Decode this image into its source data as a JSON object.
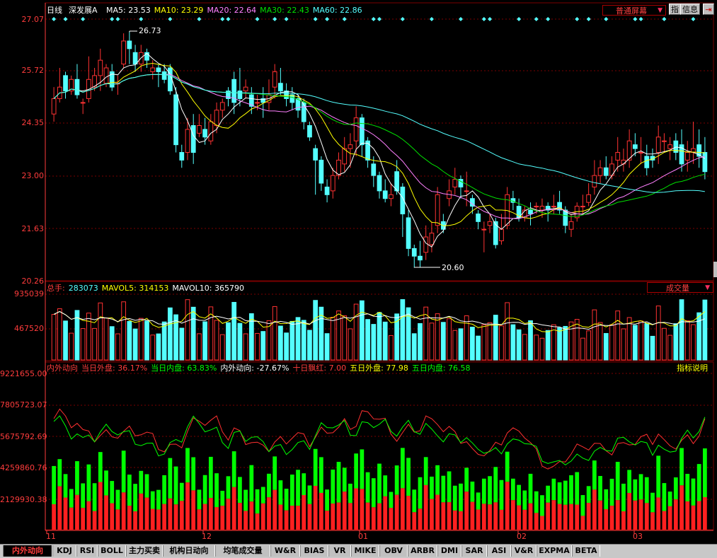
{
  "window": {
    "title": "深发展A",
    "period": "日线"
  },
  "colors": {
    "up": "#ff3232",
    "down": "#54ffff",
    "ma5": "#ffffff",
    "ma10": "#ffff00",
    "ma20": "#ff80ff",
    "ma30": "#00e000",
    "ma60": "#54ffff",
    "grid": "#7a0000",
    "axis": "#ff3c3c",
    "green": "#00ff00"
  },
  "price_panel": {
    "legend": [
      {
        "label": "MA5: 23.53",
        "color": "#ffffff"
      },
      {
        "label": "MA10: 23.29",
        "color": "#ffff00"
      },
      {
        "label": "MA20: 22.64",
        "color": "#ff80ff"
      },
      {
        "label": "MA30: 22.43",
        "color": "#00e000"
      },
      {
        "label": "MA60: 22.86",
        "color": "#54ffff"
      }
    ],
    "y_ticks": [
      "27.07",
      "25.72",
      "24.35",
      "23.00",
      "21.63",
      "20.26"
    ],
    "high_marker": "26.73",
    "low_marker": "20.60",
    "screen_mode": "普通屏幕",
    "btn_index": "指",
    "btn_info": "信息"
  },
  "volume_panel": {
    "legend": [
      {
        "label": "总手:",
        "color": "#ff3c3c"
      },
      {
        "label": "283073",
        "color": "#54ffff"
      },
      {
        "label": "MAVOL5: 314153",
        "color": "#ffff00"
      },
      {
        "label": "MAVOL10: 365790",
        "color": "#ffffff"
      }
    ],
    "y_ticks": [
      "935039",
      "467520"
    ],
    "selector": "成交量"
  },
  "flow_panel": {
    "legend": [
      {
        "label": "内外动向",
        "color": "#ff3c3c"
      },
      {
        "label": "当日外盘: 36.17%",
        "color": "#ff3c3c"
      },
      {
        "label": "当日内盘: 63.83%",
        "color": "#00ff00"
      },
      {
        "label": "内外动向: -27.67%",
        "color": "#ffffff"
      },
      {
        "label": "十日飘红: 7.00",
        "color": "#ff3c3c"
      },
      {
        "label": "五日外盘: 77.98",
        "color": "#ffff00"
      },
      {
        "label": "五日内盘: 76.58",
        "color": "#00ff00"
      }
    ],
    "y_ticks": [
      "9221655.00",
      "7805723.07",
      "5675792.69",
      "4259860.76",
      "2129930.38"
    ],
    "help": "指标说明"
  },
  "x_ticks": [
    "11",
    "12",
    "01",
    "02",
    "03"
  ],
  "tabs": [
    "内外动向",
    "KDJ",
    "RSI",
    "BOLL",
    "主力买卖",
    "机构日动向",
    "均笔成交量",
    "W&R",
    "BIAS",
    "VR",
    "MIKE",
    "OBV",
    "ARBR",
    "DMI",
    "SAR",
    "ASI",
    "V&R",
    "EXPMA",
    "BETA"
  ],
  "chart_data": {
    "type": "candlestick",
    "y_range": [
      20.26,
      27.07
    ],
    "candles": [
      [
        24.6,
        25.0,
        24.4,
        25.3
      ],
      [
        25.0,
        25.3,
        24.9,
        25.8
      ],
      [
        25.6,
        25.2,
        25.0,
        25.7
      ],
      [
        25.2,
        25.5,
        25.1,
        25.6
      ],
      [
        25.5,
        25.1,
        25.0,
        25.9
      ],
      [
        24.9,
        24.9,
        24.6,
        25.0
      ],
      [
        25.0,
        25.5,
        24.9,
        26.1
      ],
      [
        25.3,
        25.6,
        25.2,
        25.8
      ],
      [
        25.6,
        26.0,
        25.2,
        26.3
      ],
      [
        25.4,
        25.8,
        25.3,
        25.9
      ],
      [
        25.7,
        25.3,
        25.2,
        25.9
      ],
      [
        25.4,
        25.4,
        25.1,
        25.6
      ],
      [
        25.9,
        26.5,
        25.8,
        26.7
      ],
      [
        26.5,
        26.3,
        25.9,
        26.73
      ],
      [
        26.2,
        25.9,
        25.7,
        26.4
      ],
      [
        25.9,
        26.2,
        25.7,
        26.4
      ],
      [
        26.2,
        26.0,
        25.8,
        26.3
      ],
      [
        25.7,
        25.8,
        25.5,
        26.0
      ],
      [
        25.8,
        25.7,
        25.3,
        25.9
      ],
      [
        25.7,
        25.5,
        25.4,
        25.9
      ],
      [
        25.8,
        25.2,
        25.1,
        25.9
      ],
      [
        25.1,
        23.8,
        23.6,
        25.3
      ],
      [
        23.6,
        23.4,
        23.2,
        23.8
      ],
      [
        23.6,
        24.2,
        23.4,
        24.5
      ],
      [
        24.3,
        23.6,
        23.3,
        24.6
      ],
      [
        24.1,
        24.3,
        24.0,
        24.6
      ],
      [
        24.2,
        24.0,
        23.8,
        24.5
      ],
      [
        23.9,
        24.4,
        23.8,
        24.6
      ],
      [
        24.3,
        24.7,
        24.1,
        24.9
      ],
      [
        24.7,
        24.9,
        24.5,
        25.0
      ],
      [
        25.2,
        25.0,
        24.8,
        25.3
      ],
      [
        25.5,
        24.9,
        24.6,
        25.7
      ],
      [
        25.2,
        25.0,
        24.8,
        25.8
      ],
      [
        25.2,
        25.3,
        25.0,
        25.5
      ],
      [
        25.1,
        24.8,
        24.6,
        25.3
      ],
      [
        24.9,
        24.9,
        24.7,
        25.1
      ],
      [
        25.0,
        24.9,
        24.5,
        25.3
      ],
      [
        24.9,
        25.1,
        24.7,
        25.5
      ],
      [
        25.3,
        25.7,
        25.0,
        25.9
      ],
      [
        25.4,
        25.2,
        25.1,
        25.8
      ],
      [
        25.2,
        25.0,
        24.8,
        25.4
      ],
      [
        25.1,
        24.9,
        24.7,
        25.3
      ],
      [
        25.0,
        24.7,
        24.5,
        25.1
      ],
      [
        24.9,
        24.4,
        24.2,
        25.0
      ],
      [
        24.3,
        24.0,
        23.9,
        24.4
      ],
      [
        23.7,
        23.4,
        22.5,
        23.8
      ],
      [
        23.4,
        22.8,
        22.6,
        23.5
      ],
      [
        22.7,
        22.5,
        22.3,
        22.9
      ],
      [
        22.6,
        23.0,
        22.4,
        23.2
      ],
      [
        23.0,
        23.4,
        22.9,
        23.6
      ],
      [
        23.3,
        23.7,
        23.1,
        24.0
      ],
      [
        23.7,
        23.8,
        23.2,
        24.1
      ],
      [
        23.9,
        24.5,
        23.5,
        24.8
      ],
      [
        24.5,
        23.8,
        23.5,
        24.6
      ],
      [
        23.9,
        23.4,
        23.2,
        24.0
      ],
      [
        23.3,
        23.0,
        22.7,
        23.5
      ],
      [
        23.0,
        22.6,
        22.4,
        23.1
      ],
      [
        22.6,
        22.4,
        22.3,
        22.9
      ],
      [
        22.4,
        22.5,
        22.2,
        22.8
      ],
      [
        23.1,
        22.6,
        22.5,
        23.4
      ],
      [
        22.7,
        22.0,
        21.4,
        22.8
      ],
      [
        21.9,
        21.1,
        20.9,
        22.1
      ],
      [
        21.1,
        20.9,
        20.6,
        21.2
      ],
      [
        20.9,
        20.8,
        20.6,
        21.3
      ],
      [
        21.0,
        21.4,
        20.8,
        21.7
      ],
      [
        21.2,
        21.5,
        21.0,
        21.8
      ],
      [
        21.7,
        22.5,
        21.5,
        22.7
      ],
      [
        21.8,
        21.6,
        21.5,
        22.0
      ],
      [
        22.4,
        22.6,
        22.2,
        22.9
      ],
      [
        22.7,
        22.9,
        22.5,
        23.2
      ],
      [
        22.9,
        22.7,
        22.4,
        23.0
      ],
      [
        22.6,
        22.6,
        22.2,
        23.1
      ],
      [
        22.4,
        22.2,
        22.0,
        22.5
      ],
      [
        22.0,
        21.8,
        21.6,
        22.1
      ],
      [
        21.6,
        21.6,
        21.0,
        21.8
      ],
      [
        21.7,
        21.8,
        21.5,
        22.0
      ],
      [
        21.8,
        21.2,
        21.1,
        21.9
      ],
      [
        21.3,
        21.6,
        21.2,
        22.0
      ],
      [
        21.7,
        22.5,
        21.6,
        22.7
      ],
      [
        22.4,
        22.3,
        22.1,
        22.6
      ],
      [
        22.2,
        21.9,
        21.8,
        22.4
      ],
      [
        21.9,
        22.1,
        21.8,
        22.2
      ],
      [
        22.1,
        22.0,
        21.7,
        22.3
      ],
      [
        22.2,
        22.2,
        22.0,
        22.3
      ],
      [
        22.1,
        22.2,
        21.9,
        22.4
      ],
      [
        22.2,
        22.1,
        21.8,
        22.3
      ],
      [
        22.2,
        22.2,
        22.0,
        22.5
      ],
      [
        22.3,
        22.1,
        22.0,
        22.6
      ],
      [
        22.1,
        21.7,
        21.5,
        22.2
      ],
      [
        21.6,
        21.8,
        21.4,
        22.0
      ],
      [
        21.9,
        22.2,
        21.8,
        22.3
      ],
      [
        22.2,
        22.2,
        22.0,
        22.5
      ],
      [
        22.3,
        22.5,
        22.2,
        22.8
      ],
      [
        22.7,
        23.0,
        22.5,
        23.4
      ],
      [
        23.0,
        23.2,
        22.8,
        23.4
      ],
      [
        23.2,
        23.0,
        22.9,
        23.5
      ],
      [
        23.0,
        23.3,
        22.9,
        23.5
      ],
      [
        23.4,
        23.6,
        23.1,
        24.0
      ],
      [
        23.3,
        23.4,
        23.1,
        23.7
      ],
      [
        23.4,
        23.9,
        23.2,
        24.2
      ],
      [
        23.8,
        23.7,
        23.5,
        24.1
      ],
      [
        23.6,
        23.6,
        23.3,
        24.0
      ],
      [
        23.5,
        23.2,
        23.0,
        23.8
      ],
      [
        23.5,
        23.4,
        23.2,
        23.7
      ],
      [
        23.6,
        24.0,
        23.3,
        24.3
      ],
      [
        23.9,
        23.9,
        23.6,
        24.1
      ],
      [
        23.7,
        23.8,
        23.4,
        24.0
      ],
      [
        23.9,
        23.6,
        23.4,
        24.1
      ],
      [
        23.8,
        23.3,
        23.1,
        24.2
      ],
      [
        23.4,
        23.6,
        23.1,
        23.9
      ],
      [
        23.6,
        23.7,
        23.3,
        24.4
      ],
      [
        23.8,
        23.5,
        23.2,
        24.2
      ],
      [
        23.6,
        23.1,
        22.9,
        24.0
      ]
    ],
    "volume_y_range": [
      0,
      935039
    ],
    "flow_y_range": [
      0,
      9221655
    ]
  }
}
